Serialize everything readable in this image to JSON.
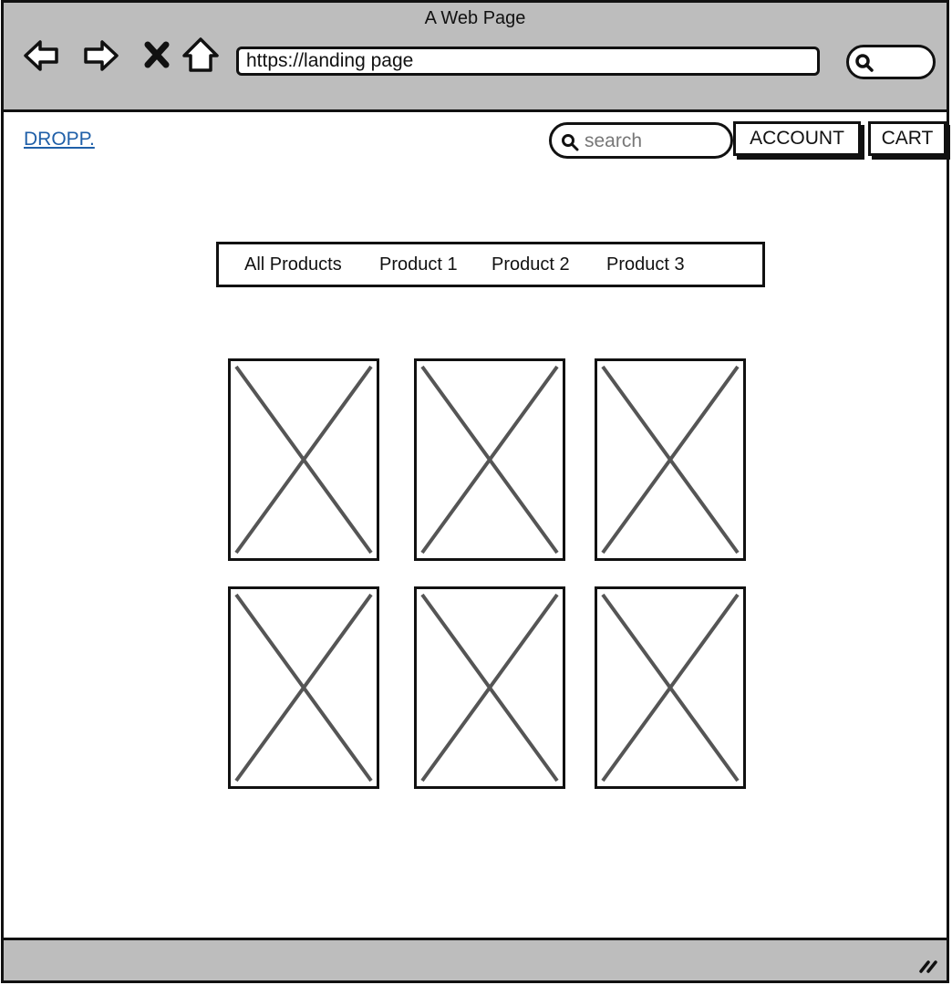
{
  "browser": {
    "title": "A Web Page",
    "url": "https://landing page",
    "icons": [
      "back-arrow-icon",
      "forward-arrow-icon",
      "stop-icon",
      "home-icon",
      "search-icon"
    ]
  },
  "header": {
    "logo": "DROPP.",
    "search_placeholder": "search",
    "account_label": "ACCOUNT",
    "cart_label": "CART"
  },
  "tabs": [
    "All Products",
    "Product 1",
    "Product 2",
    "Product 3"
  ],
  "products": {
    "rows": 2,
    "columns": 3,
    "placeholder": "image-placeholder-icon"
  },
  "colors": {
    "chrome": "#bdbdbd",
    "link": "#1f5fa8",
    "border": "#111111"
  }
}
